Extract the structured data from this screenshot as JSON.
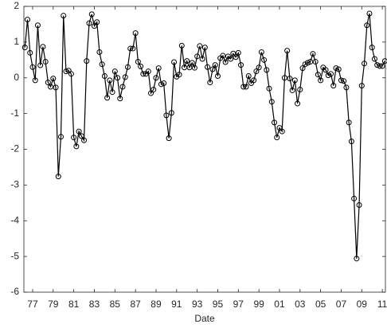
{
  "chart_data": {
    "type": "line",
    "xlabel": "Date",
    "color": "#000000",
    "marker": "circle",
    "grid": false,
    "xlim": [
      1976.15,
      2011.3
    ],
    "xticks": [
      {
        "value": 1977,
        "label": "77"
      },
      {
        "value": 1979,
        "label": "79"
      },
      {
        "value": 1981,
        "label": "81"
      },
      {
        "value": 1983,
        "label": "83"
      },
      {
        "value": 1985,
        "label": "85"
      },
      {
        "value": 1987,
        "label": "87"
      },
      {
        "value": 1989,
        "label": "89"
      },
      {
        "value": 1991,
        "label": "91"
      },
      {
        "value": 1993,
        "label": "93"
      },
      {
        "value": 1995,
        "label": "95"
      },
      {
        "value": 1997,
        "label": "97"
      },
      {
        "value": 1999,
        "label": "99"
      },
      {
        "value": 2001,
        "label": "01"
      },
      {
        "value": 2003,
        "label": "03"
      },
      {
        "value": 2005,
        "label": "05"
      },
      {
        "value": 2007,
        "label": "07"
      },
      {
        "value": 2009,
        "label": "09"
      },
      {
        "value": 2011,
        "label": "11"
      }
    ],
    "ylim": [
      -6,
      2
    ],
    "yticks": [
      -6,
      -5,
      -4,
      -3,
      -2,
      -1,
      0,
      1,
      2
    ],
    "x": [
      1976.25,
      1976.5,
      1976.75,
      1977,
      1977.25,
      1977.5,
      1977.75,
      1978,
      1978.25,
      1978.5,
      1978.75,
      1979,
      1979.25,
      1979.5,
      1979.75,
      1980,
      1980.25,
      1980.5,
      1980.75,
      1981,
      1981.25,
      1981.5,
      1981.75,
      1982,
      1982.25,
      1982.5,
      1982.75,
      1983,
      1983.25,
      1983.5,
      1983.75,
      1984,
      1984.25,
      1984.5,
      1984.75,
      1985,
      1985.25,
      1985.5,
      1985.75,
      1986,
      1986.25,
      1986.5,
      1986.75,
      1987,
      1987.25,
      1987.5,
      1987.75,
      1988,
      1988.25,
      1988.5,
      1988.75,
      1989,
      1989.25,
      1989.5,
      1989.75,
      1990,
      1990.25,
      1990.5,
      1990.75,
      1991,
      1991.25,
      1991.5,
      1991.75,
      1992,
      1992.25,
      1992.5,
      1992.75,
      1993,
      1993.25,
      1993.5,
      1993.75,
      1994,
      1994.25,
      1994.5,
      1994.75,
      1995,
      1995.25,
      1995.5,
      1995.75,
      1996,
      1996.25,
      1996.5,
      1996.75,
      1997,
      1997.25,
      1997.5,
      1997.75,
      1998,
      1998.25,
      1998.5,
      1998.75,
      1999,
      1999.25,
      1999.5,
      1999.75,
      2000,
      2000.25,
      2000.5,
      2000.75,
      2001,
      2001.25,
      2001.5,
      2001.75,
      2002,
      2002.25,
      2002.5,
      2002.75,
      2003,
      2003.25,
      2003.5,
      2003.75,
      2004,
      2004.25,
      2004.5,
      2004.75,
      2005,
      2005.25,
      2005.5,
      2005.75,
      2006,
      2006.25,
      2006.5,
      2006.75,
      2007,
      2007.25,
      2007.5,
      2007.75,
      2008,
      2008.25,
      2008.5,
      2008.75,
      2009,
      2009.25,
      2009.5,
      2009.75,
      2010,
      2010.25,
      2010.5,
      2010.75,
      2011,
      2011.25
    ],
    "values": [
      0.85,
      1.63,
      0.7,
      0.3,
      -0.07,
      1.47,
      0.35,
      0.87,
      0.45,
      -0.13,
      -0.25,
      -0.02,
      -0.27,
      -2.76,
      -1.65,
      1.74,
      0.18,
      0.2,
      0.11,
      -1.67,
      -1.92,
      -1.5,
      -1.63,
      -1.75,
      0.47,
      1.53,
      1.78,
      1.45,
      1.56,
      0.72,
      0.38,
      0.05,
      -0.56,
      -0.07,
      -0.4,
      0.18,
      0.0,
      -0.58,
      -0.25,
      0.02,
      0.3,
      0.82,
      0.82,
      1.25,
      0.45,
      0.32,
      0.11,
      0.11,
      0.18,
      -0.43,
      -0.33,
      0.0,
      0.27,
      -0.18,
      -0.15,
      -1.05,
      -1.69,
      -0.98,
      0.44,
      0.03,
      0.09,
      0.9,
      0.29,
      0.47,
      0.29,
      0.42,
      0.28,
      0.6,
      0.89,
      0.53,
      0.85,
      0.3,
      -0.13,
      0.24,
      0.36,
      0.05,
      0.55,
      0.62,
      0.44,
      0.6,
      0.53,
      0.68,
      0.58,
      0.7,
      0.36,
      -0.25,
      -0.25,
      0.05,
      -0.15,
      -0.07,
      0.18,
      0.29,
      0.72,
      0.5,
      0.22,
      -0.3,
      -0.67,
      -1.25,
      -1.67,
      -1.4,
      -1.5,
      0.0,
      0.76,
      -0.02,
      -0.35,
      -0.07,
      -0.72,
      -0.33,
      0.27,
      0.38,
      0.42,
      0.45,
      0.67,
      0.45,
      0.09,
      -0.07,
      0.29,
      0.22,
      0.07,
      0.11,
      -0.22,
      0.27,
      0.24,
      -0.07,
      -0.09,
      -0.27,
      -1.25,
      -1.78,
      -3.38,
      -5.06,
      -3.56,
      -0.22,
      0.4,
      1.47,
      1.8,
      0.85,
      0.53,
      0.36,
      0.33,
      0.33,
      0.47
    ]
  }
}
